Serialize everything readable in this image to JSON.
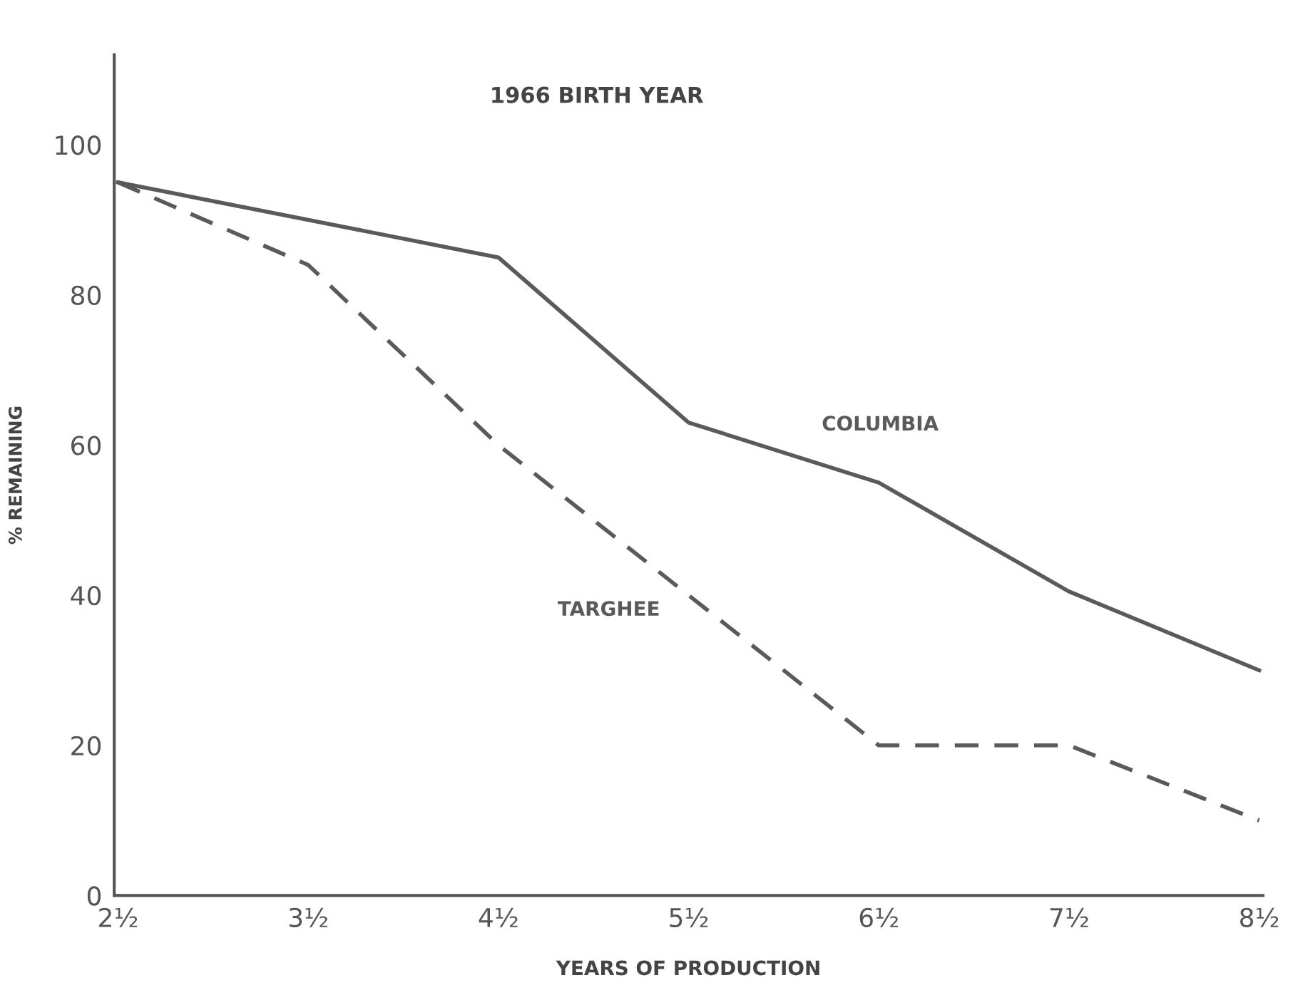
{
  "chart_data": {
    "type": "line",
    "title": "1966 BIRTH YEAR",
    "xlabel": "YEARS OF PRODUCTION",
    "ylabel": "% REMAINING",
    "categories": [
      "2½",
      "3½",
      "4½",
      "5½",
      "6½",
      "7½",
      "8½"
    ],
    "series": [
      {
        "name": "COLUMBIA",
        "color": "#5a5a5a",
        "line_style": "solid",
        "values": [
          95,
          90,
          85,
          63,
          55,
          40.5,
          30
        ]
      },
      {
        "name": "TARGHEE",
        "color": "#5a5a5a",
        "line_style": "dashed",
        "values": [
          95,
          84,
          60,
          40,
          20,
          20,
          10
        ]
      }
    ],
    "ylim": [
      0,
      112
    ],
    "yticks": [
      0,
      20,
      40,
      60,
      80,
      100
    ],
    "grid": false,
    "legend": false,
    "marker": "none"
  }
}
